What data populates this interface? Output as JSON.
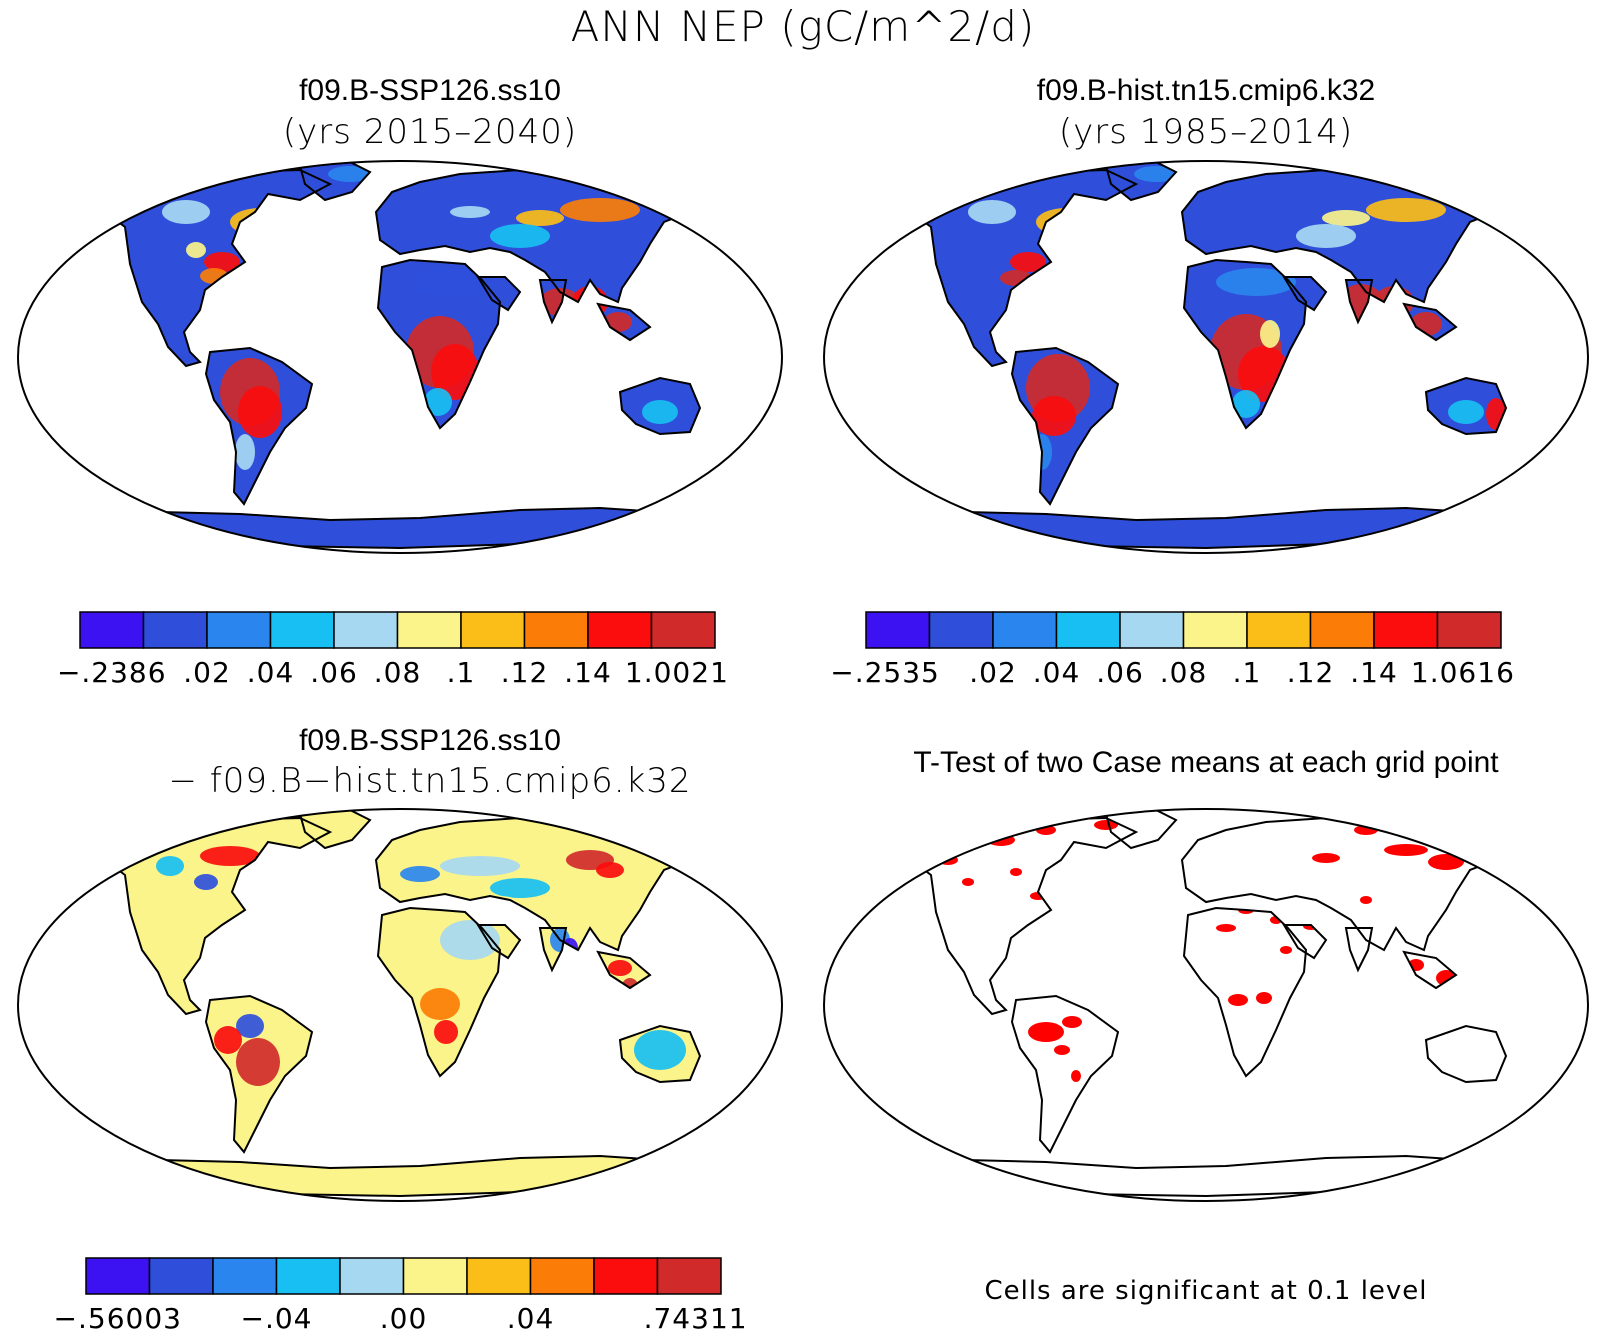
{
  "figure": {
    "title": "ANN NEP (gC/m^2/d)"
  },
  "panels": [
    {
      "id": "p1",
      "title": "f09.B-SSP126.ss10",
      "subtitle": "(yrs 2015–2040)",
      "colorbar": {
        "colors": [
          "#3d12f2",
          "#2f4fdb",
          "#2a86ee",
          "#18bff2",
          "#a7d8f2",
          "#fbf48a",
          "#fbbd17",
          "#fb7d07",
          "#fb0d0d",
          "#d02a2a"
        ],
        "labels": [
          "−.2386",
          ".02",
          ".04",
          ".06",
          ".08",
          ".1",
          ".12",
          ".14",
          "1.0021"
        ]
      }
    },
    {
      "id": "p2",
      "title": "f09.B-hist.tn15.cmip6.k32",
      "subtitle": "(yrs 1985–2014)",
      "colorbar": {
        "colors": [
          "#3d12f2",
          "#2f4fdb",
          "#2a86ee",
          "#18bff2",
          "#a7d8f2",
          "#fbf48a",
          "#fbbd17",
          "#fb7d07",
          "#fb0d0d",
          "#d02a2a"
        ],
        "labels": [
          "−.2535",
          ".02",
          ".04",
          ".06",
          ".08",
          ".1",
          ".12",
          ".14",
          "1.0616"
        ]
      }
    },
    {
      "id": "p3",
      "title": "f09.B-SSP126.ss10",
      "subtitle": "− f09.B−hist.tn15.cmip6.k32",
      "colorbar": {
        "colors": [
          "#3d12f2",
          "#2f4fdb",
          "#2a86ee",
          "#18bff2",
          "#a7d8f2",
          "#fbf48a",
          "#fbbd17",
          "#fb7d07",
          "#fb0d0d",
          "#d02a2a"
        ],
        "labels": [
          "−.56003",
          "−.04",
          ".00",
          ".04",
          ".74311"
        ]
      }
    },
    {
      "id": "p4",
      "title": "T-Test of two Case means at each grid point",
      "footnote": "Cells are significant at 0.1 level",
      "significant_color": "#ff0000"
    }
  ]
}
